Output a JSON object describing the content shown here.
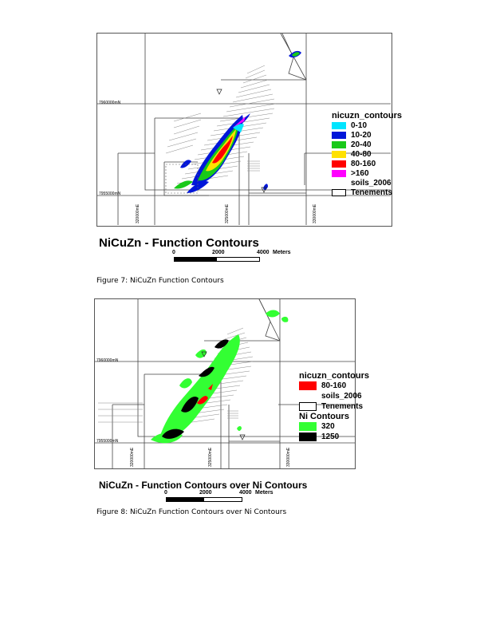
{
  "figure1": {
    "map_title": "NiCuZn - Function Contours",
    "caption": "Figure 7: NiCuZn Function Contours",
    "grid_labels": {
      "north_upper": "7960000mN",
      "north_lower": "7955000mN",
      "east_left": "320000mE",
      "east_mid": "325000mE",
      "east_right": "330000mE"
    },
    "legend": {
      "title": "nicuzn_contours",
      "items": [
        {
          "label": "0-10",
          "color": "#00e5ff"
        },
        {
          "label": "10-20",
          "color": "#0016d9"
        },
        {
          "label": "20-40",
          "color": "#19c919"
        },
        {
          "label": "40-80",
          "color": "#ffe100"
        },
        {
          "label": "80-160",
          "color": "#ff0000"
        },
        {
          "label": ">160",
          "color": "#ff00ff"
        }
      ],
      "soils_label": "soils_2006",
      "tenements_label": "Tenements"
    },
    "scale": {
      "labels": [
        "0",
        "2000",
        "4000"
      ],
      "unit": "Meters"
    }
  },
  "figure2": {
    "map_title": "NiCuZn - Function Contours over Ni Contours",
    "caption": "Figure 8: NiCuZn Function Contours over Ni Contours",
    "grid_labels": {
      "north_upper": "7960000mN",
      "north_lower": "7955000mN",
      "east_left": "320000mE",
      "east_mid": "325000mE",
      "east_right": "330000mE"
    },
    "legend": {
      "title": "nicuzn_contours",
      "items": [
        {
          "label": "80-160",
          "color": "#ff0000"
        }
      ],
      "soils_label": "soils_2006",
      "tenements_label": "Tenements",
      "ni_title": "Ni Contours",
      "ni_items": [
        {
          "label": "320",
          "color": "#33ff33"
        },
        {
          "label": "1250",
          "color": "#000000"
        }
      ]
    },
    "scale": {
      "labels": [
        "0",
        "2000",
        "4000"
      ],
      "unit": "Meters"
    }
  }
}
